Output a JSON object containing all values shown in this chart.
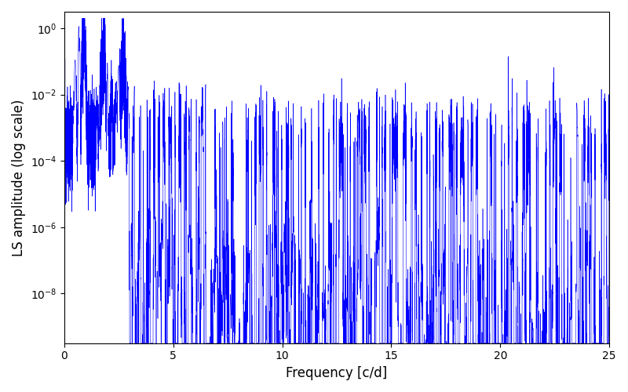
{
  "title": "",
  "xlabel": "Frequency [c/d]",
  "ylabel": "LS amplitude (log scale)",
  "xlim": [
    0,
    25
  ],
  "ylim_log_min": -9.5,
  "ylim_log_max": 0.5,
  "color": "#0000ff",
  "linewidth": 0.4,
  "yscale": "log",
  "figsize": [
    8.0,
    5.0
  ],
  "dpi": 100,
  "seed": 12345,
  "n_points": 15000,
  "background_color": "#ffffff",
  "xticks": [
    0,
    5,
    10,
    15,
    20,
    25
  ]
}
